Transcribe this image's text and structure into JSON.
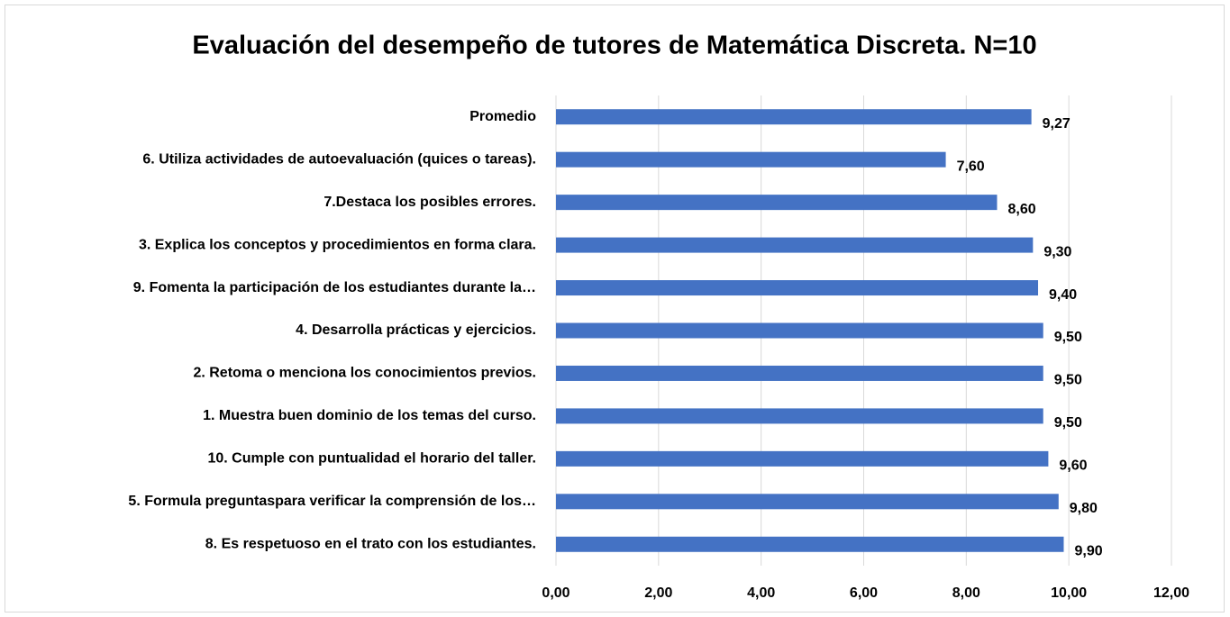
{
  "chart_data": {
    "type": "barh",
    "title": "Evaluación del desempeño de tutores de Matemática Discreta. N=10",
    "categories": [
      "Promedio",
      "6. Utiliza actividades de autoevaluación (quices o tareas).",
      "7.Destaca los posibles errores.",
      "3. Explica los conceptos y procedimientos en forma clara.",
      "9. Fomenta la participación de los estudiantes durante la…",
      "4. Desarrolla prácticas y ejercicios.",
      "2. Retoma o menciona los conocimientos previos.",
      "1. Muestra buen dominio de los temas del curso.",
      "10. Cumple con puntualidad el horario del taller.",
      "5. Formula preguntaspara verificar la comprensión de los…",
      "8. Es respetuoso en el trato con los estudiantes."
    ],
    "values": [
      9.27,
      7.6,
      8.6,
      9.3,
      9.4,
      9.5,
      9.5,
      9.5,
      9.6,
      9.8,
      9.9
    ],
    "value_labels": [
      "9,27",
      "7,60",
      "8,60",
      "9,30",
      "9,40",
      "9,50",
      "9,50",
      "9,50",
      "9,60",
      "9,80",
      "9,90"
    ],
    "color": "#4472c4",
    "xlim": [
      0,
      12
    ],
    "xticks": [
      {
        "value": 0,
        "label": "0,00"
      },
      {
        "value": 2,
        "label": "2,00"
      },
      {
        "value": 4,
        "label": "4,00"
      },
      {
        "value": 6,
        "label": "6,00"
      },
      {
        "value": 8,
        "label": "8,00"
      },
      {
        "value": 10,
        "label": "10,00"
      },
      {
        "value": 12,
        "label": "12,00"
      }
    ],
    "grid": true
  }
}
